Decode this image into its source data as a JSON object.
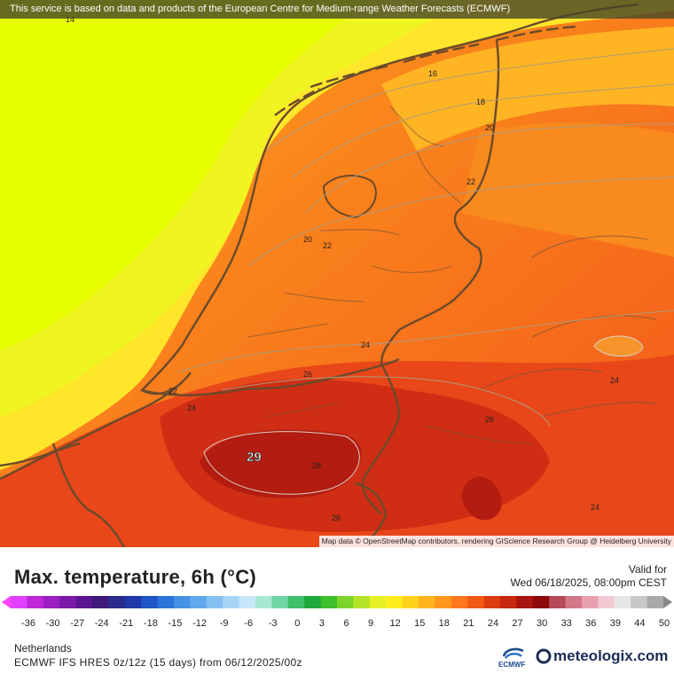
{
  "map": {
    "notice": "This service is based on data and products of the European Centre for Medium-range Weather Forecasts (ECMWF)",
    "attribution": "Map data © OpenStreetMap contributors, rendering GIScience Research Group @ Heidelberg University",
    "max_label": "29",
    "contour_labels": [
      "14",
      "16",
      "18",
      "20",
      "22",
      "20",
      "22",
      "24",
      "22",
      "24",
      "26",
      "26",
      "28",
      "26",
      "24",
      "24"
    ]
  },
  "header": {
    "title": "Max. temperature, 6h (°C)",
    "valid_label": "Valid for",
    "valid_date": "Wed 06/18/2025, 08:00pm CEST"
  },
  "colorbar": {
    "ticks": [
      "-36",
      "-30",
      "-27",
      "-24",
      "-21",
      "-18",
      "-15",
      "-12",
      "-9",
      "-6",
      "-3",
      "0",
      "3",
      "6",
      "9",
      "12",
      "15",
      "18",
      "21",
      "24",
      "27",
      "30",
      "33",
      "36",
      "39",
      "44",
      "50"
    ],
    "colors": [
      "#e040fb",
      "#c027d8",
      "#9b1fc2",
      "#7b1aa8",
      "#5a1590",
      "#3f1a7a",
      "#2a2b8c",
      "#1f3aa8",
      "#1f55c4",
      "#2b74d9",
      "#4591e3",
      "#62a8ec",
      "#85c0f2",
      "#a8d4f6",
      "#c8e6fa",
      "#a6e8d0",
      "#6fd6a6",
      "#3ebf6a",
      "#1ea83a",
      "#3cbf2a",
      "#7cd42a",
      "#b4e42a",
      "#e6f028",
      "#ffee1e",
      "#ffd21e",
      "#ffb41e",
      "#ff961e",
      "#ff781e",
      "#f05a14",
      "#dc3c0f",
      "#c8280f",
      "#a8140f",
      "#8c0a0a",
      "#b44a5a",
      "#d27888",
      "#e8a0b0",
      "#f4c8d2",
      "#e6e6e6",
      "#c8c8c8",
      "#aaaaaa"
    ]
  },
  "footer": {
    "region": "Netherlands",
    "model": "ECMWF IFS HRES 0z/12z (15 days) from  06/12/2025/00z",
    "ecmwf_logo": "ECMWF",
    "brand": "meteologix.com"
  }
}
